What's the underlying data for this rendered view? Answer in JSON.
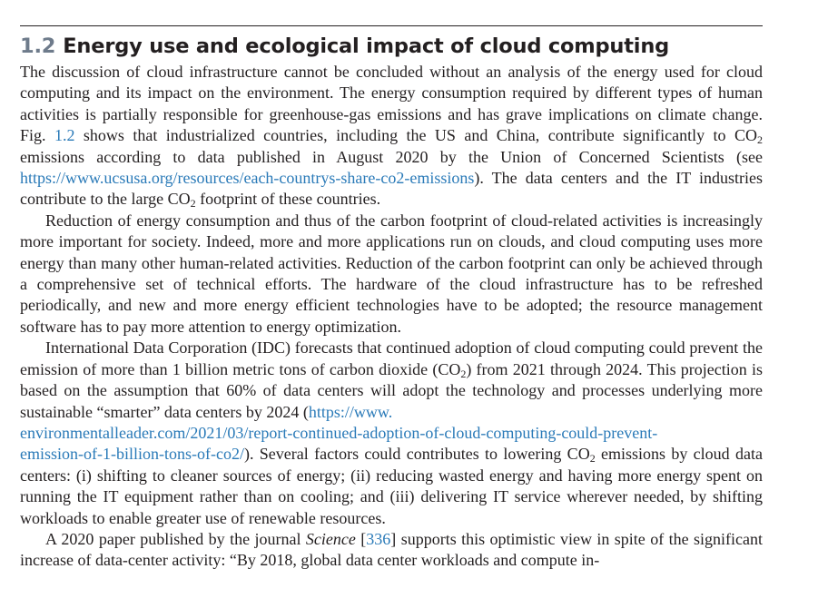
{
  "section": {
    "number": "1.2",
    "title": "Energy use and ecological impact of cloud computing"
  },
  "p1": {
    "a": "The discussion of cloud infrastructure cannot be concluded without an analysis of the energy used for cloud computing and its impact on the environment. The energy consumption required by different types of human activities is partially responsible for greenhouse-gas emissions and has grave impli­cations on climate change. Fig. ",
    "fig_ref": "1.2",
    "b": " shows that industrialized countries, including the US and China, contribute significantly to CO",
    "sub1": "2",
    "c": " emissions according to data published in August 2020 by the Union of Concerned Scientists (see ",
    "url": "https://www.ucsusa.org/resources/each-countrys-share-co2-emissions",
    "d": "). The data centers and the IT industries contribute to the large CO",
    "sub2": "2",
    "e": " footprint of these countries."
  },
  "p2": {
    "text": "Reduction of energy consumption and thus of the carbon footprint of cloud-related activities is in­creasingly more important for society. Indeed, more and more applications run on clouds, and cloud computing uses more energy than many other human-related activities. Reduction of the carbon foot­print can only be achieved through a comprehensive set of technical efforts. The hardware of the cloud infrastructure has to be refreshed periodically, and new and more energy efficient technologies have to be adopted; the resource management software has to pay more attention to energy optimization."
  },
  "p3": {
    "a": "International Data Corporation (IDC) forecasts that continued adoption of cloud computing could prevent the emission of more than 1 billion metric tons of carbon dioxide (CO",
    "sub1": "2",
    "b": ") from 2021 through 2024. This projection is based on the assumption that 60% of data centers will adopt the tech­nology and processes underlying more sustainable “smarter” data centers by 2024 (",
    "url_l1": "https://www.",
    "url_l2": "environmentalleader.com/2021/03/report-continued-adoption-of-cloud-computing-could-prevent-",
    "url_l3": "emission-of-1-billion-tons-of-co2/",
    "c": "). Several factors could contributes to lowering CO",
    "sub2": "2",
    "d": " emissions by cloud data centers: (i) shifting to cleaner sources of energy; (ii) reducing wasted energy and having more energy spent on running the IT equipment rather than on cooling; and (iii) delivering IT service wherever needed, by shifting workloads to enable greater use of renewable resources."
  },
  "p4": {
    "a": "A 2020 paper published by the journal ",
    "journal": "Science",
    "b": " [",
    "cite": "336",
    "c": "] supports this optimistic view in spite of the significant increase of data-center activity: “By 2018, global data center workloads and compute in-"
  }
}
